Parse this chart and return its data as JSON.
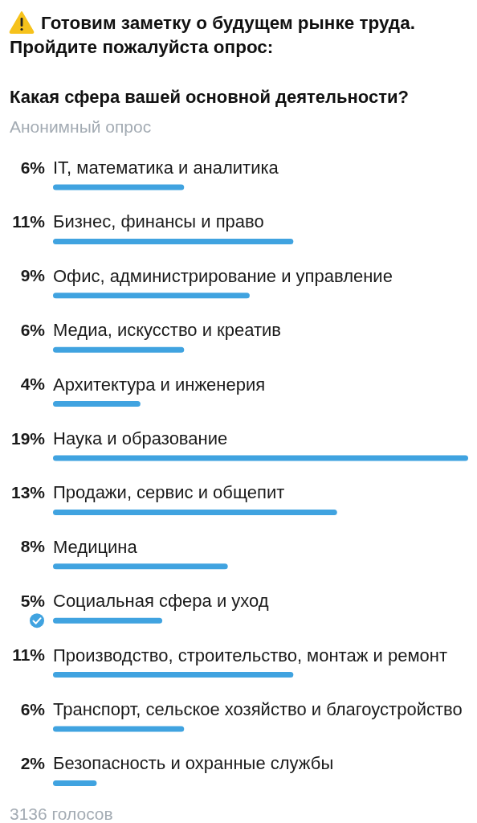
{
  "chart_data": {
    "type": "bar",
    "orientation": "horizontal",
    "title": "Готовим заметку о будущем рынке труда.\nПройдите пожалуйста опрос:",
    "subtitle": "Какая сфера вашей основной деятельности?",
    "annotations": [
      "Анонимный опрос",
      "3136 голосов"
    ],
    "categories": [
      "IT, математика и аналитика",
      "Бизнес, финансы и право",
      "Офис, администрирование и управление",
      "Медиа, искусство и креатив",
      "Архитектура и инженерия",
      "Наука и образование",
      "Продажи, сервис и общепит",
      "Медицина",
      "Социальная сфера и уход",
      "Производство, строительство, монтаж и ремонт",
      "Транспорт, сельское хозяйство и благоустройство",
      "Безопасность и охранные службы"
    ],
    "values": [
      6,
      11,
      9,
      6,
      4,
      19,
      13,
      8,
      5,
      11,
      6,
      2
    ],
    "value_labels": [
      "6%",
      "11%",
      "9%",
      "6%",
      "4%",
      "19%",
      "13%",
      "8%",
      "5%",
      "11%",
      "6%",
      "2%"
    ],
    "color": "#40a3e0"
  }
}
